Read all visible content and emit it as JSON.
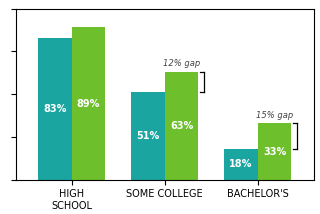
{
  "chart_data": {
    "type": "bar",
    "categories": [
      "HIGH\nSCHOOL",
      "SOME COLLEGE",
      "BACHELOR'S"
    ],
    "series": [
      {
        "color": "#1aa5a0",
        "values": [
          83,
          51,
          18
        ],
        "value_labels": [
          "83%",
          "51%",
          "18%"
        ]
      },
      {
        "color": "#6dbf2c",
        "values": [
          89,
          63,
          33
        ],
        "value_labels": [
          "89%",
          "63%",
          "33%"
        ]
      }
    ],
    "ylim": [
      0,
      100
    ],
    "yticks": [
      0,
      25,
      50,
      75,
      100
    ],
    "data_labels": true,
    "tick_labels": "x",
    "annotations": [
      {
        "category": "SOME COLLEGE",
        "text": "12% gap"
      },
      {
        "category": "BACHELOR'S",
        "text": "15% gap"
      }
    ]
  }
}
